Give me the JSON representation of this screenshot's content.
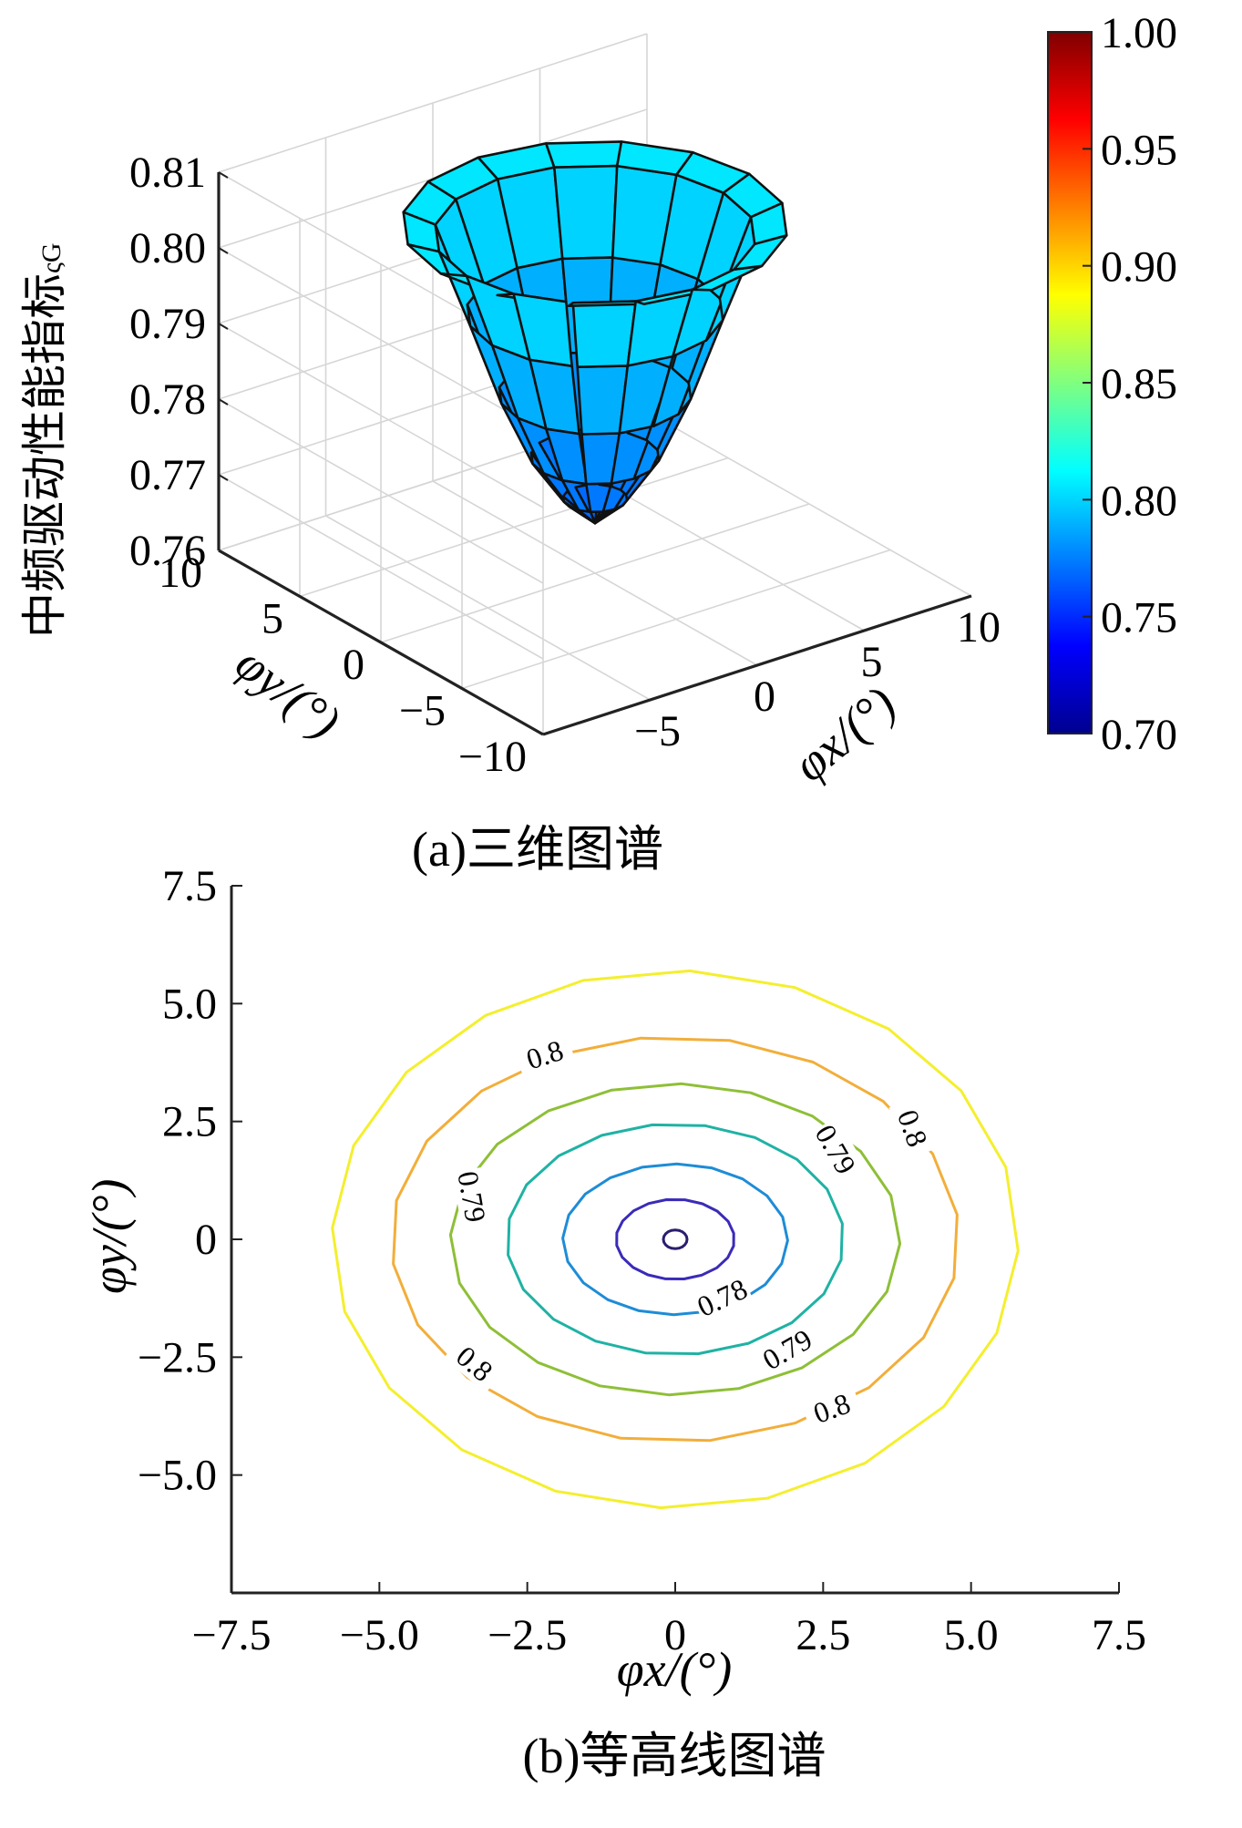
{
  "chart_data": [
    {
      "type": "surface",
      "caption": "(a)三维图谱",
      "zlabel": "中频驱动性能指标",
      "zlabel_symbol": "ςG",
      "xlabel": "φx/(°)",
      "ylabel": "φy/(°)",
      "xlim": [
        -10,
        10
      ],
      "ylim": [
        -10,
        10
      ],
      "zlim": [
        0.76,
        0.81
      ],
      "xticks": [
        "−5",
        "0",
        "5",
        "10"
      ],
      "yticks": [
        "10",
        "5",
        "0",
        "−5",
        "−10"
      ],
      "zticks": [
        "0.81",
        "0.80",
        "0.79",
        "0.78",
        "0.77",
        "0.76"
      ],
      "surface": {
        "apex": {
          "x": 0,
          "y": 0,
          "z": 0.7666
        },
        "radius_at_z": [
          {
            "r": 0,
            "z": 0.7666
          },
          {
            "r": 1.2,
            "z": 0.7699
          },
          {
            "r": 2.4,
            "z": 0.7754
          },
          {
            "r": 3.6,
            "z": 0.7838
          },
          {
            "r": 4.8,
            "z": 0.7945
          },
          {
            "r": 6.0,
            "z": 0.8048
          },
          {
            "r": 7.2,
            "z": 0.8062
          }
        ],
        "grid_segments_around": 16
      },
      "colorbar": {
        "ticks": [
          "1.00",
          "0.95",
          "0.90",
          "0.85",
          "0.80",
          "0.75",
          "0.70"
        ],
        "range": [
          0.7,
          1.0
        ],
        "colormap": "jet"
      }
    },
    {
      "type": "contour",
      "caption": "(b)等高线图谱",
      "xlabel": "φx/(°)",
      "ylabel": "φy/(°)",
      "xlim": [
        -7.5,
        7.5
      ],
      "ylim": [
        -7.5,
        7.5
      ],
      "xticks": [
        "−7.5",
        "−5.0",
        "−2.5",
        "0",
        "2.5",
        "5.0",
        "7.5"
      ],
      "yticks": [
        "7.5",
        "5.0",
        "2.5",
        "0",
        "−2.5",
        "−5.0"
      ],
      "levels": [
        {
          "rx": 0.2,
          "ry": 0.2,
          "color": "#2a1e6e"
        },
        {
          "rx": 1.0,
          "ry": 0.85,
          "color": "#3a2bb8"
        },
        {
          "rx": 1.9,
          "ry": 1.6,
          "color": "#1e8cd6"
        },
        {
          "rx": 2.85,
          "ry": 2.45,
          "color": "#1fb2a4"
        },
        {
          "rx": 3.8,
          "ry": 3.3,
          "color": "#8ebf37"
        },
        {
          "rx": 4.8,
          "ry": 4.3,
          "color": "#f2ae3a"
        },
        {
          "rx": 5.8,
          "ry": 5.7,
          "color": "#f4ef2e"
        }
      ],
      "contour_labels": [
        {
          "text": "0.8",
          "x": -2.2,
          "y": 3.9,
          "angle": -18
        },
        {
          "text": "0.79",
          "x": -3.45,
          "y": 0.9,
          "angle": 80
        },
        {
          "text": "0.79",
          "x": 2.7,
          "y": 1.9,
          "angle": 60
        },
        {
          "text": "0.8",
          "x": 4.0,
          "y": 2.35,
          "angle": 70
        },
        {
          "text": "0.78",
          "x": 0.8,
          "y": -1.25,
          "angle": -25
        },
        {
          "text": "0.79",
          "x": 1.9,
          "y": -2.35,
          "angle": -30
        },
        {
          "text": "0.8",
          "x": 2.65,
          "y": -3.6,
          "angle": -20
        },
        {
          "text": "0.8",
          "x": -3.4,
          "y": -2.65,
          "angle": 40
        }
      ]
    }
  ]
}
